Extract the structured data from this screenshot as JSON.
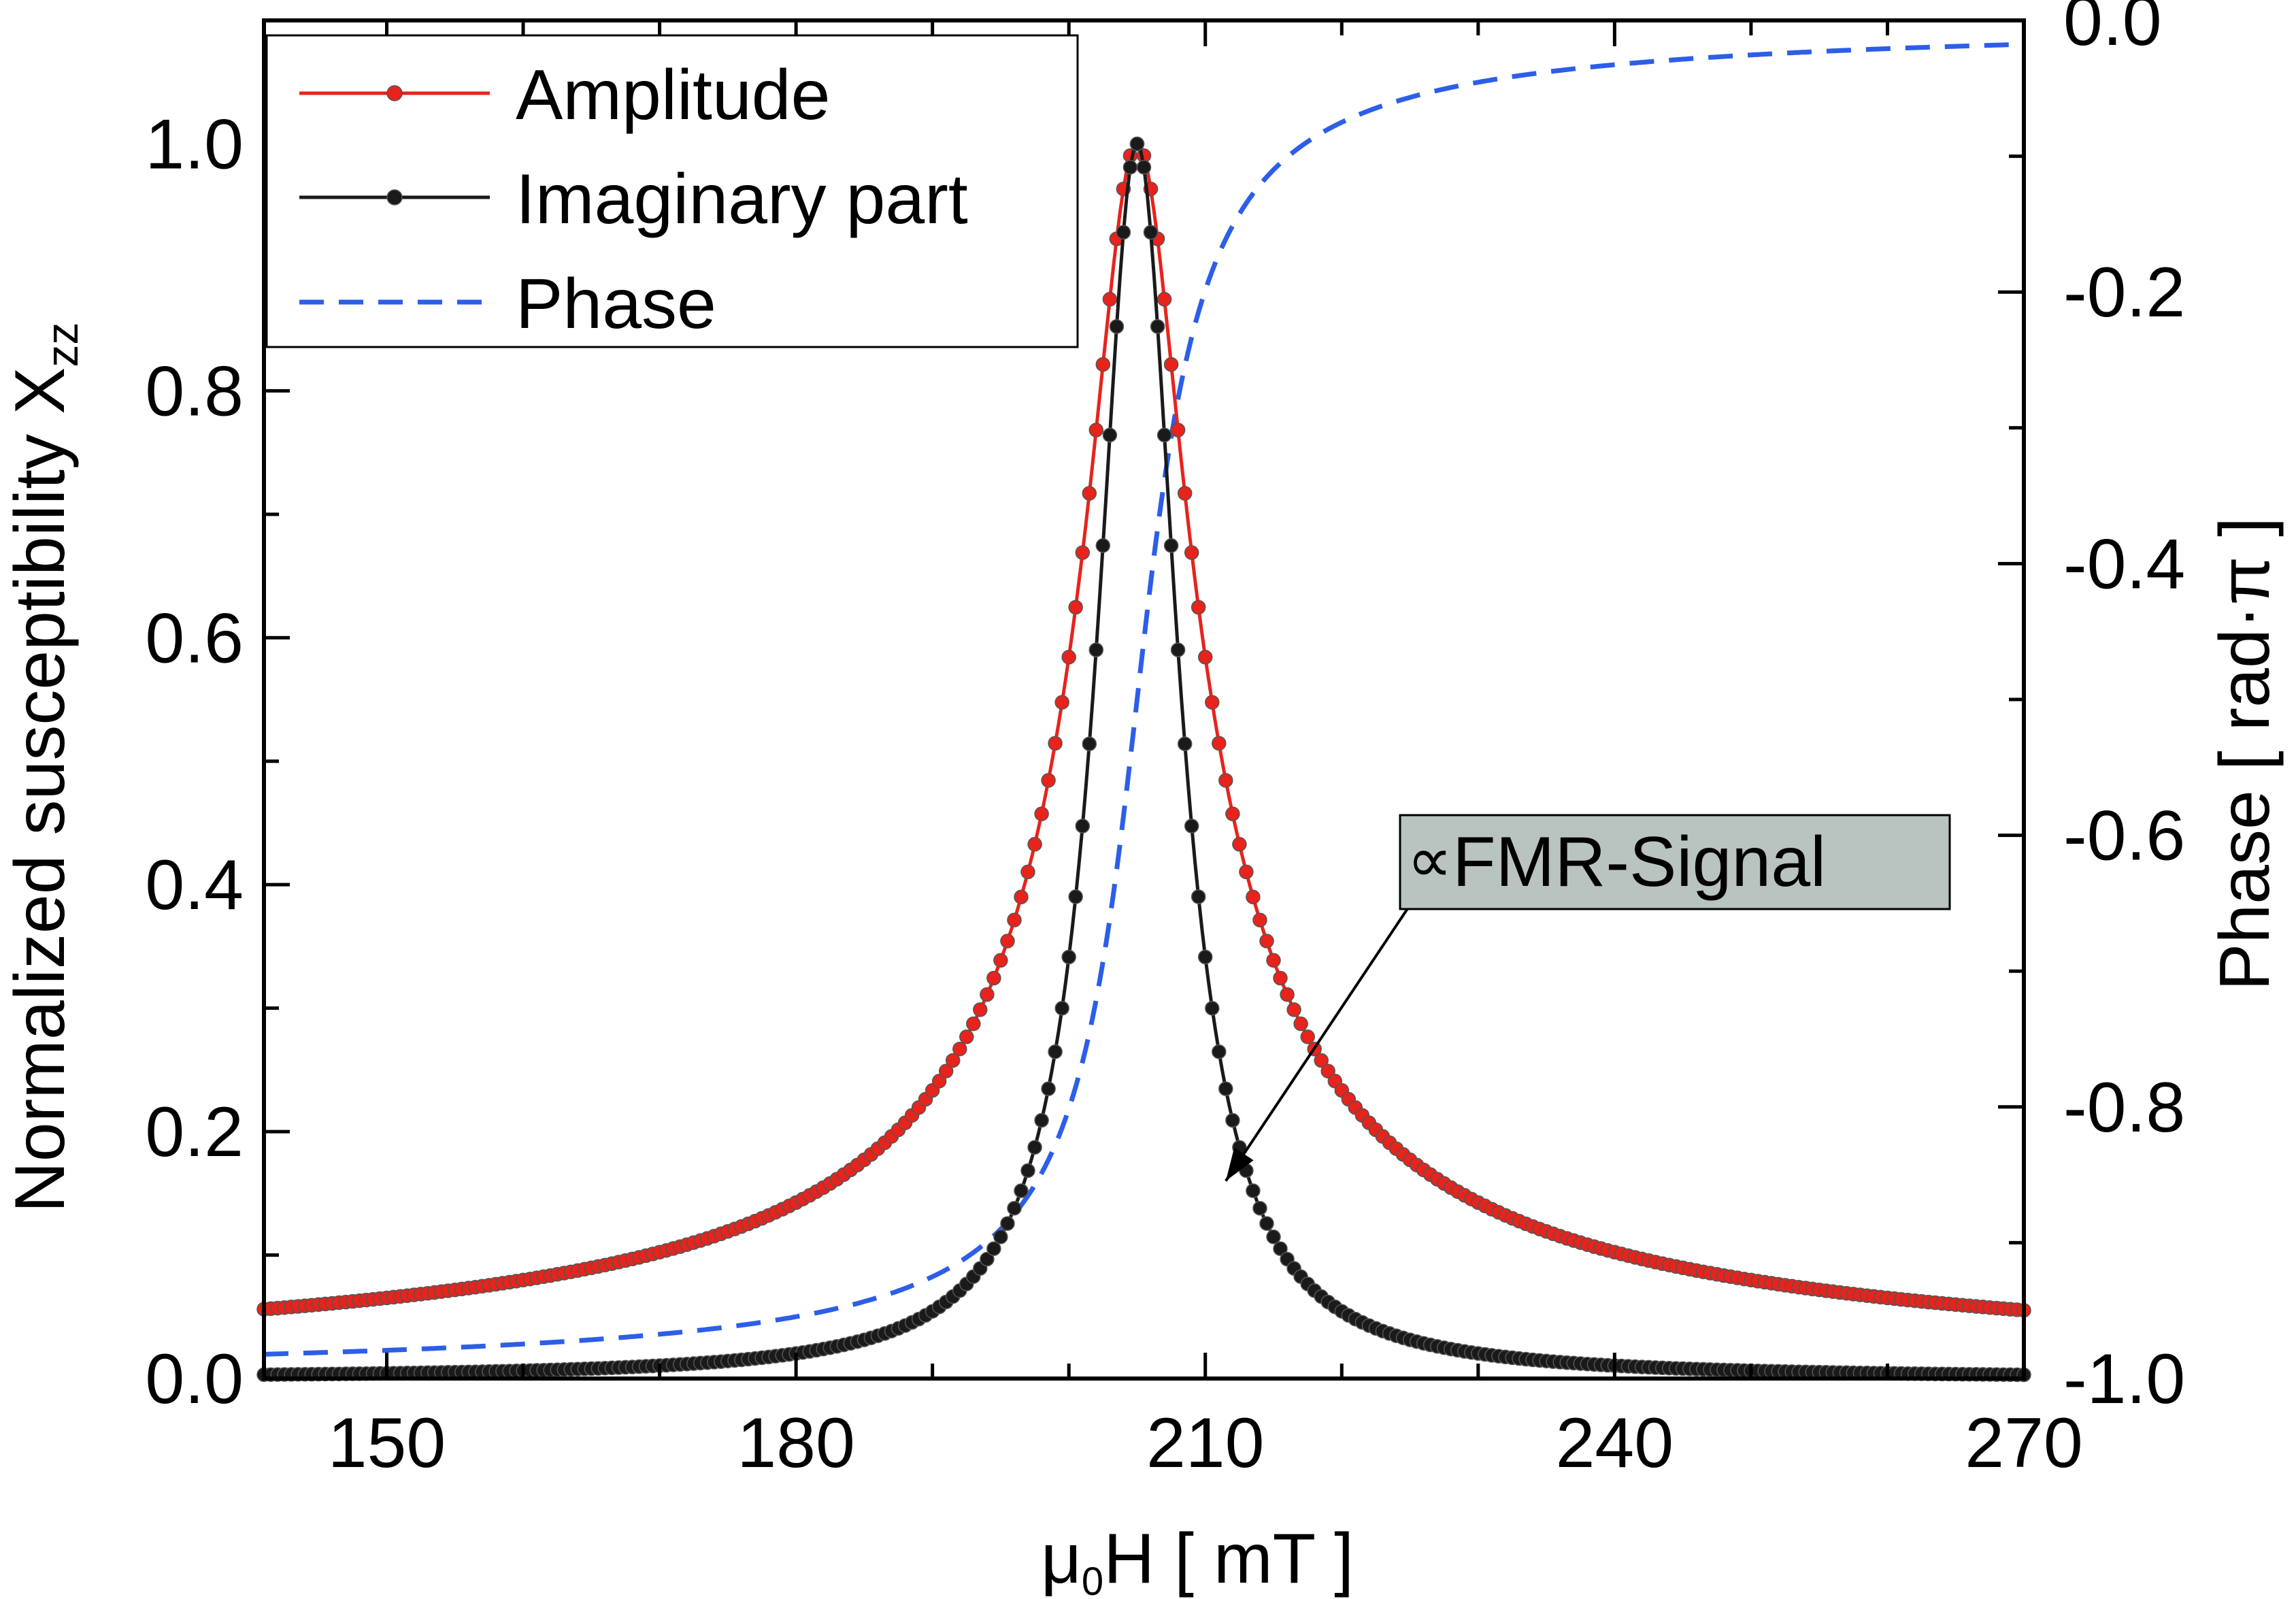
{
  "chart_data": {
    "type": "line",
    "title": "",
    "xlabel": "μ₀H [ mT ]",
    "ylabel": "Normalized susceptibility χ_zz",
    "ylabel_main": "Normalized susceptibility X",
    "ylabel_sub": "zz",
    "y2label": "Phase [ rad·π ]",
    "xlabel_prefix": "μ",
    "xlabel_sub": "0",
    "xlabel_suffix": "H [ mT ]",
    "xlim": [
      141,
      270
    ],
    "ylim": [
      0,
      1.1
    ],
    "y2lim": [
      -1.0,
      0.0
    ],
    "x_ticks": [
      "150",
      "180",
      "210",
      "240",
      "270"
    ],
    "y_ticks": [
      "0.0",
      "0.2",
      "0.4",
      "0.6",
      "0.8",
      "1.0"
    ],
    "y2_ticks": [
      "0.0",
      "-0.2",
      "-0.4",
      "-0.6",
      "-0.8",
      "-1.0"
    ],
    "resonance_field_mT": 205,
    "half_width_mT": 3.6,
    "legend": {
      "position": "top-left",
      "entries": [
        "Amplitude",
        "Imaginary part",
        "Phase"
      ]
    },
    "annotation": {
      "symbol": "∝",
      "text": "FMR-Signal",
      "points_to_x": 211.5,
      "points_to_y": 0.16
    },
    "series": [
      {
        "name": "Amplitude",
        "color": "#e8231c",
        "marker": "circle",
        "axis": "left",
        "x": [
          141,
          150,
          160,
          170,
          180,
          185,
          190,
          195,
          198,
          200,
          202,
          203,
          204,
          205,
          206,
          207,
          208,
          210,
          212,
          215,
          220,
          230,
          240,
          250,
          260,
          270
        ],
        "y": [
          0.03,
          0.035,
          0.045,
          0.062,
          0.087,
          0.12,
          0.18,
          0.33,
          0.47,
          0.6,
          0.76,
          0.87,
          0.97,
          1.0,
          0.97,
          0.87,
          0.76,
          0.57,
          0.45,
          0.33,
          0.23,
          0.13,
          0.09,
          0.07,
          0.06,
          0.05
        ]
      },
      {
        "name": "Imaginary part",
        "color": "#1a1a1a",
        "marker": "circle",
        "axis": "left",
        "x": [
          141,
          160,
          180,
          190,
          195,
          198,
          200,
          202,
          203,
          204,
          205,
          206,
          207,
          208,
          210,
          212,
          215,
          220,
          230,
          250,
          270
        ],
        "y": [
          0.005,
          0.006,
          0.013,
          0.035,
          0.1,
          0.22,
          0.37,
          0.62,
          0.78,
          0.93,
          1.0,
          0.93,
          0.78,
          0.62,
          0.3,
          0.16,
          0.07,
          0.025,
          0.008,
          0.004,
          0.003
        ]
      },
      {
        "name": "Phase",
        "color": "#2c5ee8",
        "dash": "dashed",
        "axis": "right",
        "x": [
          141,
          160,
          180,
          190,
          195,
          198,
          200,
          202,
          204,
          205,
          206,
          208,
          210,
          212,
          215,
          220,
          230,
          240,
          250,
          260,
          270
        ],
        "y": [
          -0.98,
          -0.98,
          -0.97,
          -0.94,
          -0.9,
          -0.85,
          -0.78,
          -0.67,
          -0.55,
          -0.5,
          -0.4,
          -0.27,
          -0.16,
          -0.11,
          -0.07,
          -0.05,
          -0.03,
          -0.02,
          -0.015,
          -0.01,
          -0.005
        ]
      }
    ]
  }
}
